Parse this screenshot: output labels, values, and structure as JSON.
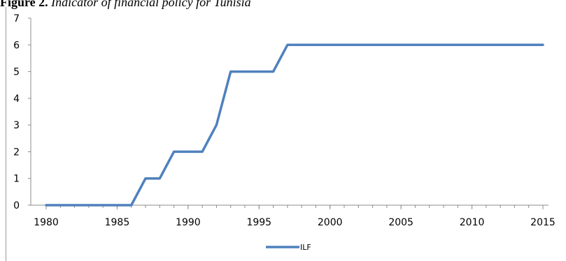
{
  "caption": {
    "figure_label": "Figure 2.",
    "title": "Indicator of financial policy for Tunisia"
  },
  "colors": {
    "series": "#4f81bd",
    "axis": "#8c8c8c",
    "text": "#000000"
  },
  "chart_data": {
    "type": "line",
    "title": "Indicator of financial policy for Tunisia",
    "xlabel": "",
    "ylabel": "",
    "xlim": [
      1980,
      2015
    ],
    "ylim": [
      0,
      7
    ],
    "x_ticks": [
      1980,
      1985,
      1990,
      1995,
      2000,
      2005,
      2010,
      2015
    ],
    "y_ticks": [
      0,
      1,
      2,
      3,
      4,
      5,
      6,
      7
    ],
    "grid": false,
    "legend_position": "bottom",
    "series": [
      {
        "name": "ILF",
        "x": [
          1980,
          1986,
          1987,
          1988,
          1989,
          1991,
          1992,
          1993,
          1996,
          1997,
          2015
        ],
        "y": [
          0,
          0,
          1,
          1,
          2,
          2,
          3,
          5,
          5,
          6,
          6
        ]
      }
    ]
  }
}
